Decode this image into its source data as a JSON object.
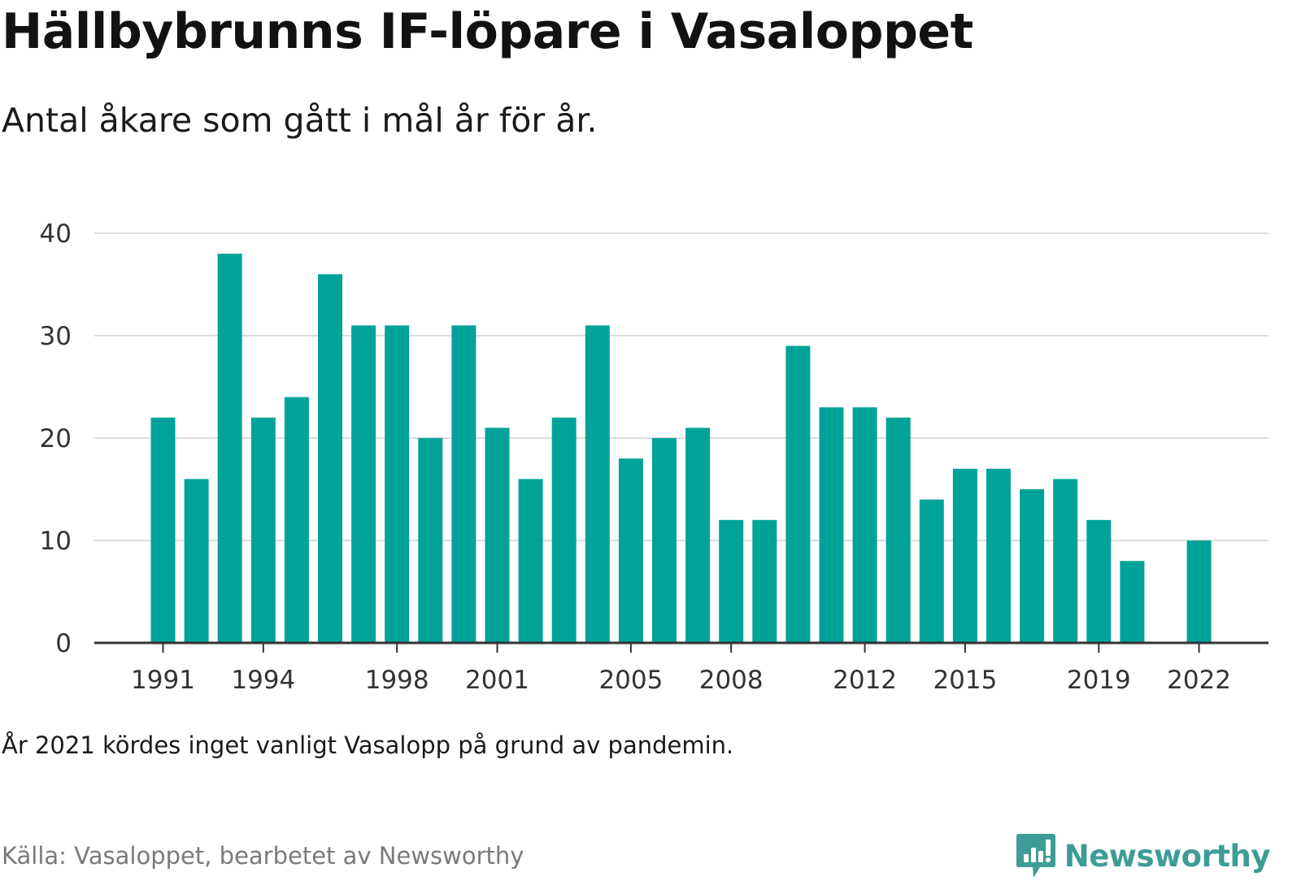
{
  "header": {
    "title": "Hällbybrunns IF-löpare i Vasaloppet",
    "subtitle": "Antal åkare som gått i mål år för år."
  },
  "chart_data": {
    "type": "bar",
    "title": "Hällbybrunns IF-löpare i Vasaloppet",
    "subtitle": "Antal åkare som gått i mål år för år.",
    "xlabel": "",
    "ylabel": "",
    "categories": [
      "1991",
      "1992",
      "1993",
      "1994",
      "1995",
      "1996",
      "1997",
      "1998",
      "1999",
      "2000",
      "2001",
      "2002",
      "2003",
      "2004",
      "2005",
      "2006",
      "2007",
      "2008",
      "2009",
      "2010",
      "2011",
      "2012",
      "2013",
      "2014",
      "2015",
      "2016",
      "2017",
      "2018",
      "2019",
      "2020",
      "2021",
      "2022"
    ],
    "values": [
      22,
      16,
      38,
      22,
      24,
      36,
      31,
      31,
      20,
      31,
      21,
      16,
      22,
      31,
      18,
      20,
      21,
      12,
      12,
      29,
      23,
      23,
      22,
      14,
      17,
      17,
      15,
      16,
      12,
      8,
      null,
      10
    ],
    "x_tick_labels": [
      "1991",
      "1994",
      "1998",
      "2001",
      "2005",
      "2008",
      "2012",
      "2015",
      "2019",
      "2022"
    ],
    "y_tick_labels": [
      "0",
      "10",
      "20",
      "30",
      "40"
    ],
    "ylim": [
      0,
      40
    ],
    "grid": true,
    "legend": "none",
    "bar_color": "#00a39a"
  },
  "footer": {
    "note": "År 2021 kördes inget vanligt Vasalopp på grund av pandemin.",
    "source": "Källa: Vasaloppet, bearbetet av Newsworthy",
    "brand": "Newsworthy",
    "brand_color": "#3d9c96",
    "brand_icon": "bar-chart-speech-bubble-icon"
  }
}
